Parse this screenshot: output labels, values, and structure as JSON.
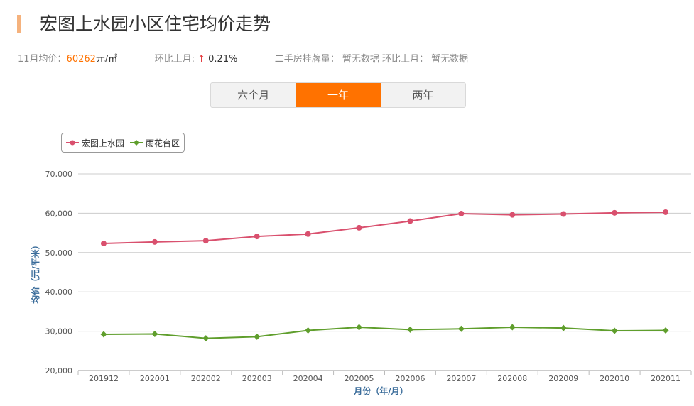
{
  "header": {
    "title": "宏图上水园小区住宅均价走势"
  },
  "stats": {
    "price_label": "11月均价：",
    "price_value": "60262",
    "price_unit": "元/㎡",
    "mom_label": "环比上月:",
    "mom_arrow": "↑",
    "mom_value": "0.21%",
    "listing_text": "二手房挂牌量： 暂无数据 环比上月： 暂无数据"
  },
  "tabs": [
    {
      "label": "六个月",
      "active": false
    },
    {
      "label": "一年",
      "active": true
    },
    {
      "label": "两年",
      "active": false
    }
  ],
  "colors": {
    "accent": "#ff7200",
    "series1": "#d9506e",
    "series2": "#5f9e2c"
  },
  "chart_data": {
    "type": "line",
    "x": [
      "201912",
      "202001",
      "202002",
      "202003",
      "202004",
      "202005",
      "202006",
      "202007",
      "202008",
      "202009",
      "202010",
      "202011"
    ],
    "series": [
      {
        "name": "宏图上水园",
        "marker": "circle",
        "values": [
          52300,
          52700,
          53000,
          54100,
          54700,
          56300,
          58000,
          59900,
          59600,
          59800,
          60100,
          60262
        ]
      },
      {
        "name": "雨花台区",
        "marker": "diamond",
        "values": [
          29200,
          29300,
          28200,
          28600,
          30200,
          31000,
          30400,
          30600,
          31000,
          30800,
          30100,
          30200
        ]
      }
    ],
    "xlabel": "月份（年/月）",
    "ylabel": "均价（元/平米）",
    "ylim": [
      20000,
      70000
    ],
    "yticks": [
      "20,000",
      "30,000",
      "40,000",
      "50,000",
      "60,000",
      "70,000"
    ],
    "grid": true,
    "legend": "top-left"
  }
}
